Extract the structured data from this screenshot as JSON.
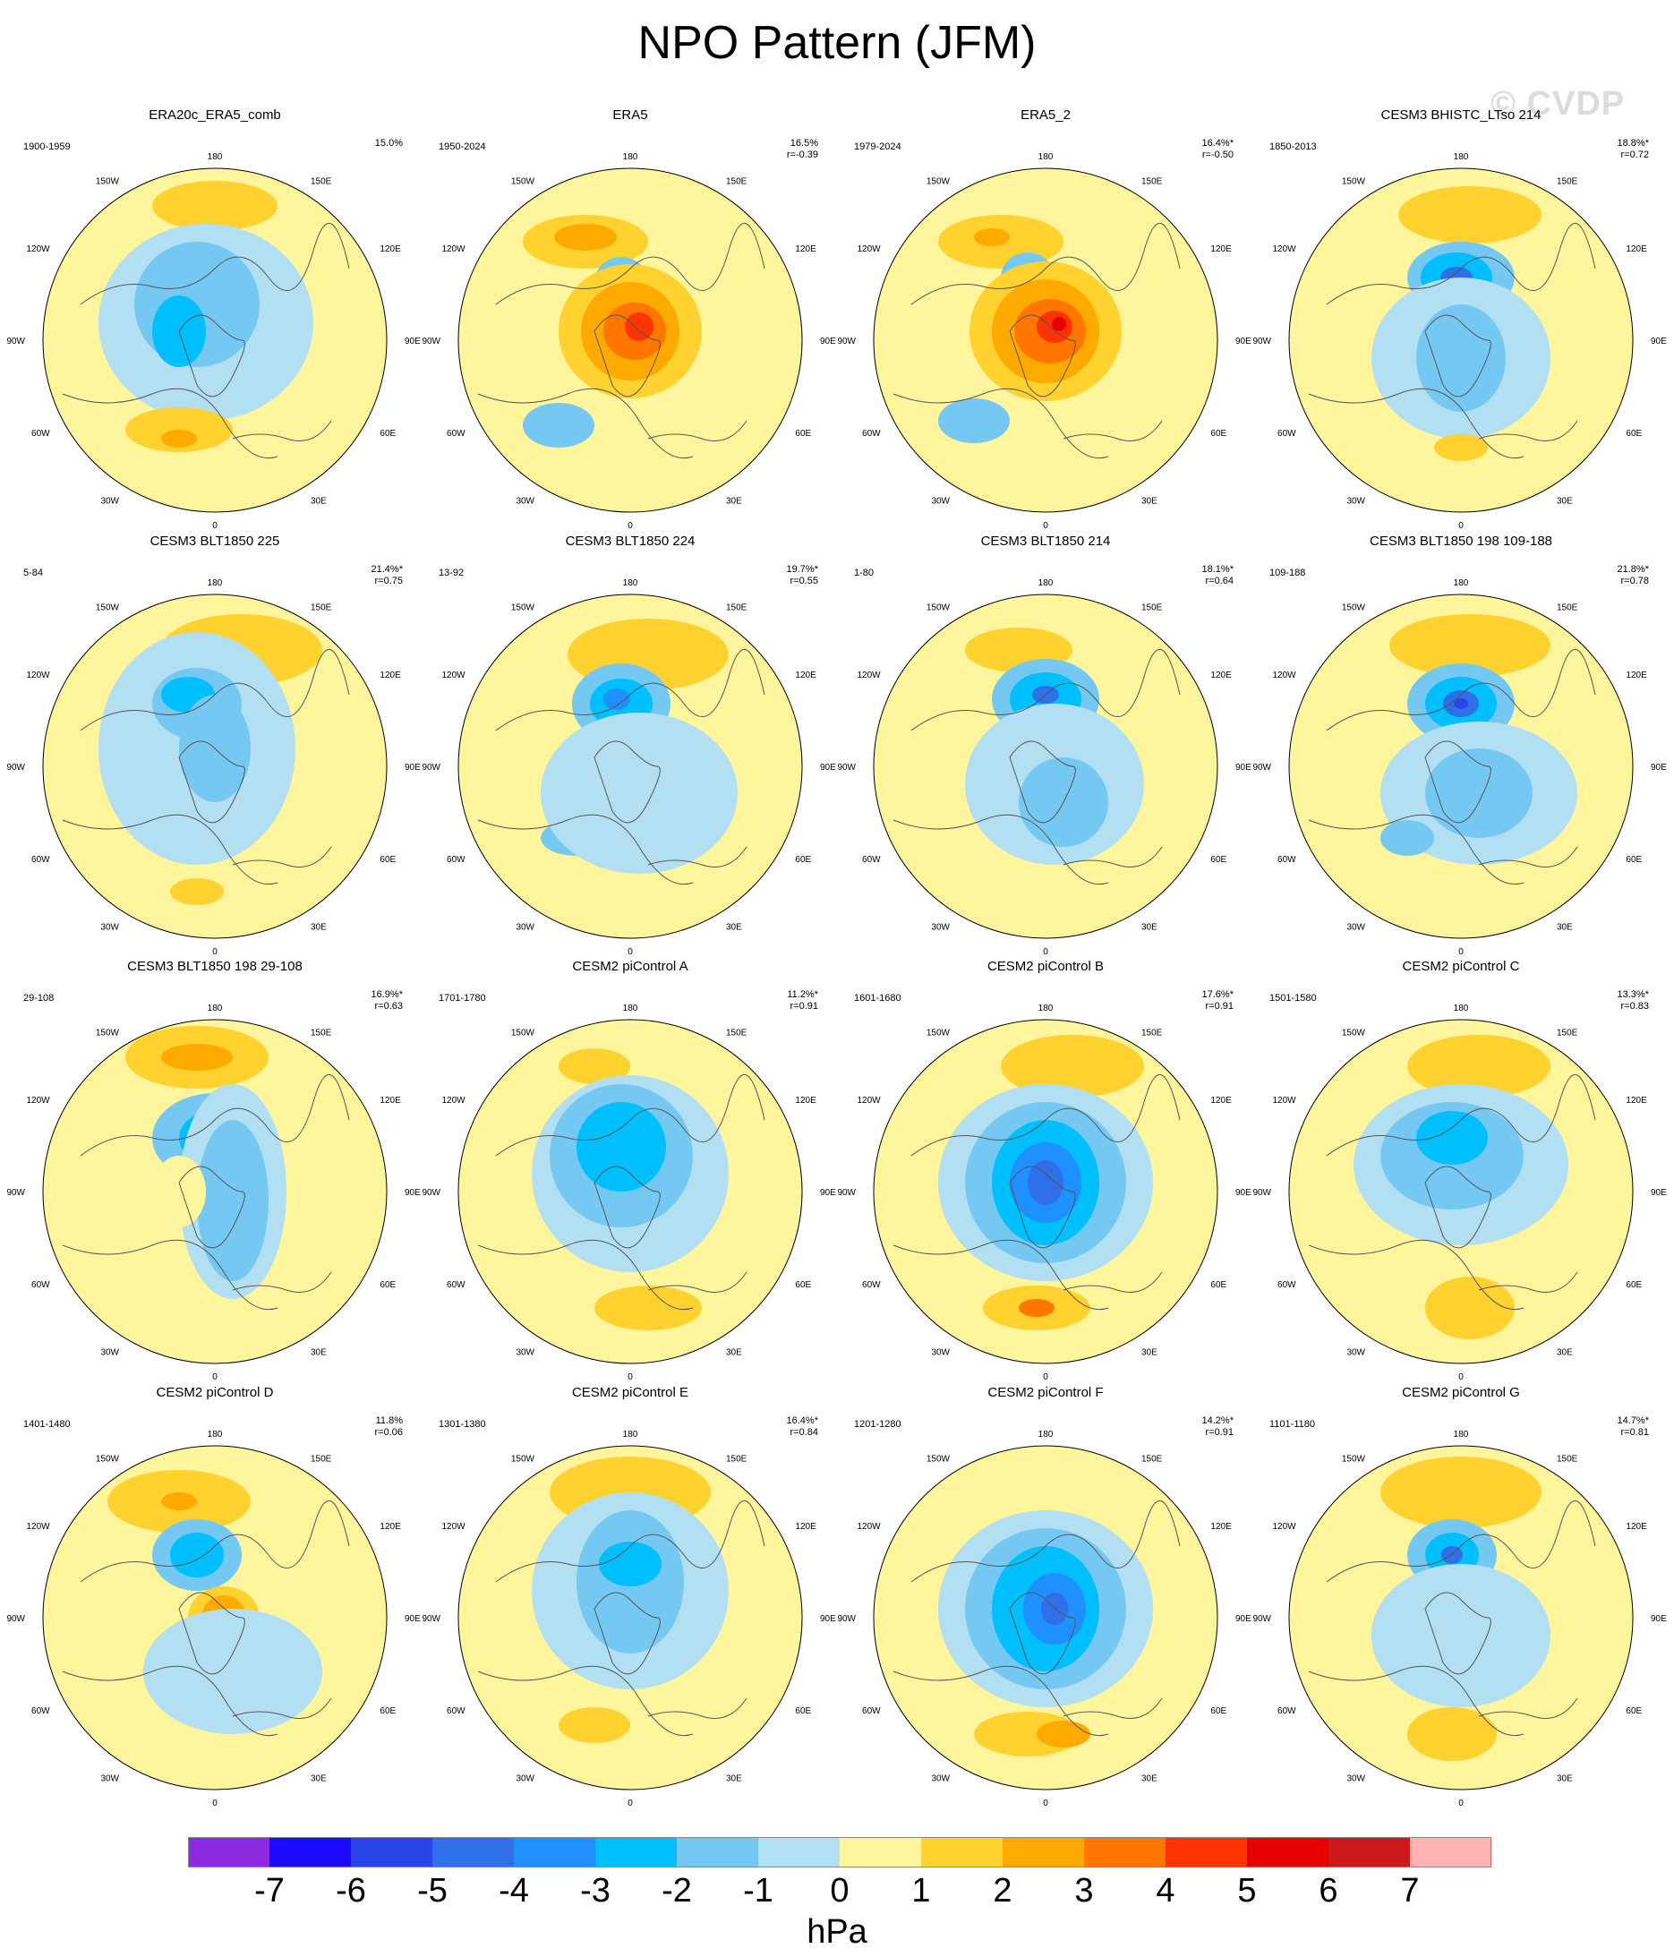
{
  "title": "NPO Pattern (JFM)",
  "watermark": "© CVDP",
  "lon_labels": [
    "180",
    "150E",
    "120E",
    "90E",
    "60E",
    "30E",
    "0",
    "30W",
    "60W",
    "90W",
    "120W",
    "150W"
  ],
  "panels": [
    {
      "title": "ERA20c_ERA5_comb",
      "period": "1900-1959",
      "pct": "15.0%",
      "r": ""
    },
    {
      "title": "ERA5",
      "period": "1950-2024",
      "pct": "16.5%",
      "r": "r=-0.39"
    },
    {
      "title": "ERA5_2",
      "period": "1979-2024",
      "pct": "16.4%*",
      "r": "r=-0.50"
    },
    {
      "title": "CESM3 BHISTC_LTso 214",
      "period": "1850-2013",
      "pct": "18.8%*",
      "r": "r=0.72"
    },
    {
      "title": "CESM3 BLT1850 225",
      "period": "5-84",
      "pct": "21.4%*",
      "r": "r=0.75"
    },
    {
      "title": "CESM3 BLT1850 224",
      "period": "13-92",
      "pct": "19.7%*",
      "r": "r=0.55"
    },
    {
      "title": "CESM3 BLT1850 214",
      "period": "1-80",
      "pct": "18.1%*",
      "r": "r=0.64"
    },
    {
      "title": "CESM3 BLT1850 198 109-188",
      "period": "109-188",
      "pct": "21.8%*",
      "r": "r=0.78"
    },
    {
      "title": "CESM3 BLT1850 198 29-108",
      "period": "29-108",
      "pct": "16.9%*",
      "r": "r=0.63"
    },
    {
      "title": "CESM2 piControl A",
      "period": "1701-1780",
      "pct": "11.2%*",
      "r": "r=0.91"
    },
    {
      "title": "CESM2 piControl B",
      "period": "1601-1680",
      "pct": "17.6%*",
      "r": "r=0.91"
    },
    {
      "title": "CESM2 piControl C",
      "period": "1501-1580",
      "pct": "13.3%*",
      "r": "r=0.83"
    },
    {
      "title": "CESM2 piControl D",
      "period": "1401-1480",
      "pct": "11.8%",
      "r": "r=0.06"
    },
    {
      "title": "CESM2 piControl E",
      "period": "1301-1380",
      "pct": "16.4%*",
      "r": "r=0.84"
    },
    {
      "title": "CESM2 piControl F",
      "period": "1201-1280",
      "pct": "14.2%*",
      "r": "r=0.91"
    },
    {
      "title": "CESM2 piControl G",
      "period": "1101-1180",
      "pct": "14.7%*",
      "r": "r=0.81"
    }
  ],
  "chart_data": {
    "type": "heatmap",
    "title": "NPO Pattern (JFM)",
    "projection": "polar stereographic (Northern Hemisphere)",
    "colorbar": {
      "unit": "hPa",
      "ticks": [
        -7,
        -6,
        -5,
        -4,
        -3,
        -2,
        -1,
        0,
        1,
        2,
        3,
        4,
        5,
        6,
        7
      ],
      "colors": [
        "#8a2be2",
        "#1a0aff",
        "#2a45e8",
        "#2f6fe8",
        "#1e90ff",
        "#00bfff",
        "#74c8f2",
        "#b3dff2",
        "#fff59d",
        "#ffd230",
        "#ffaa00",
        "#ff7700",
        "#ff3300",
        "#e60000",
        "#cc1a1a",
        "#ffb3b3"
      ]
    },
    "panels": [
      {
        "title": "ERA20c_ERA5_comb",
        "variance_explained_pct": 15.0
      },
      {
        "title": "ERA5",
        "variance_explained_pct": 16.5,
        "r": -0.39
      },
      {
        "title": "ERA5_2",
        "variance_explained_pct": 16.4,
        "r": -0.5
      },
      {
        "title": "CESM3 BHISTC_LTso 214",
        "variance_explained_pct": 18.8,
        "r": 0.72
      },
      {
        "title": "CESM3 BLT1850 225",
        "variance_explained_pct": 21.4,
        "r": 0.75
      },
      {
        "title": "CESM3 BLT1850 224",
        "variance_explained_pct": 19.7,
        "r": 0.55
      },
      {
        "title": "CESM3 BLT1850 214",
        "variance_explained_pct": 18.1,
        "r": 0.64
      },
      {
        "title": "CESM3 BLT1850 198 109-188",
        "variance_explained_pct": 21.8,
        "r": 0.78
      },
      {
        "title": "CESM3 BLT1850 198 29-108",
        "variance_explained_pct": 16.9,
        "r": 0.63
      },
      {
        "title": "CESM2 piControl A",
        "variance_explained_pct": 11.2,
        "r": 0.91
      },
      {
        "title": "CESM2 piControl B",
        "variance_explained_pct": 17.6,
        "r": 0.91
      },
      {
        "title": "CESM2 piControl C",
        "variance_explained_pct": 13.3,
        "r": 0.83
      },
      {
        "title": "CESM2 piControl D",
        "variance_explained_pct": 11.8,
        "r": 0.06
      },
      {
        "title": "CESM2 piControl E",
        "variance_explained_pct": 16.4,
        "r": 0.84
      },
      {
        "title": "CESM2 piControl F",
        "variance_explained_pct": 14.2,
        "r": 0.91
      },
      {
        "title": "CESM2 piControl G",
        "variance_explained_pct": 14.7,
        "r": 0.81
      }
    ]
  }
}
